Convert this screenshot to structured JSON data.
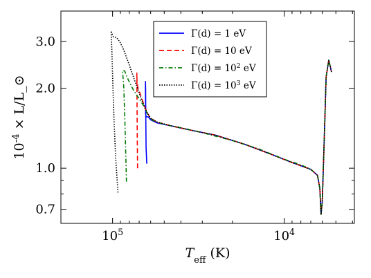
{
  "chart_data": {
    "type": "line",
    "xlabel": "T_eff (K)",
    "ylabel": "10^-4 × L/L_⊙",
    "x_axis": {
      "scale": "log",
      "reversed": true,
      "range": [
        200000,
        3900
      ]
    },
    "y_axis": {
      "scale": "log",
      "range": [
        0.62,
        3.9
      ]
    },
    "x_ticks": [
      {
        "value": 100000,
        "label": "10^5"
      },
      {
        "value": 10000,
        "label": "10^4"
      }
    ],
    "y_ticks": [
      {
        "value": 3.0,
        "label": "3.0"
      },
      {
        "value": 2.0,
        "label": "2.0"
      },
      {
        "value": 1.0,
        "label": "1.0"
      },
      {
        "value": 0.7,
        "label": "0.7"
      }
    ],
    "grid": false,
    "legend_position": "top-center",
    "series": [
      {
        "name": "Γ(d) = 1 eV",
        "color": "#0000ff",
        "style": "solid",
        "points": [
          [
            63200,
            1.04
          ],
          [
            63800,
            1.2
          ],
          [
            64000,
            1.5
          ],
          [
            64200,
            2.0
          ],
          [
            64300,
            2.12
          ],
          [
            64350,
            2.0
          ],
          [
            64200,
            1.6
          ],
          [
            63800,
            1.56
          ],
          [
            62000,
            1.56
          ],
          [
            60000,
            1.52
          ],
          [
            55000,
            1.48
          ],
          [
            45000,
            1.44
          ],
          [
            35000,
            1.39
          ],
          [
            25000,
            1.33
          ],
          [
            17000,
            1.23
          ],
          [
            12000,
            1.13
          ],
          [
            9000,
            1.05
          ],
          [
            7000,
            0.99
          ],
          [
            6400,
            0.94
          ],
          [
            6200,
            0.84
          ],
          [
            6100,
            0.67
          ],
          [
            6000,
            0.75
          ],
          [
            5800,
            1.5
          ],
          [
            5700,
            2.2
          ],
          [
            5500,
            2.55
          ],
          [
            5300,
            2.3
          ]
        ]
      },
      {
        "name": "Γ(d) = 10 eV",
        "color": "#ff0000",
        "style": "dashed",
        "points": [
          [
            71500,
            1.0
          ],
          [
            71800,
            1.3
          ],
          [
            72000,
            1.7
          ],
          [
            72200,
            2.28
          ],
          [
            72000,
            2.1
          ],
          [
            71000,
            2.0
          ],
          [
            69000,
            1.9
          ],
          [
            66000,
            1.75
          ],
          [
            63000,
            1.62
          ],
          [
            60000,
            1.54
          ],
          [
            55000,
            1.49
          ],
          [
            45000,
            1.44
          ],
          [
            35000,
            1.39
          ],
          [
            25000,
            1.33
          ],
          [
            17000,
            1.23
          ],
          [
            12000,
            1.13
          ],
          [
            9000,
            1.05
          ],
          [
            7000,
            0.99
          ],
          [
            6400,
            0.94
          ],
          [
            6200,
            0.84
          ],
          [
            6100,
            0.67
          ],
          [
            6000,
            0.75
          ],
          [
            5800,
            1.5
          ],
          [
            5700,
            2.2
          ],
          [
            5500,
            2.55
          ],
          [
            5300,
            2.3
          ]
        ]
      },
      {
        "name": "Γ(d) = 10^2 eV",
        "color": "#007a00",
        "style": "dashdot",
        "points": [
          [
            83000,
            0.89
          ],
          [
            84000,
            1.2
          ],
          [
            85000,
            1.6
          ],
          [
            86000,
            2.0
          ],
          [
            87500,
            2.33
          ],
          [
            85000,
            2.32
          ],
          [
            81000,
            2.15
          ],
          [
            76000,
            1.98
          ],
          [
            71000,
            1.85
          ],
          [
            66000,
            1.72
          ],
          [
            62000,
            1.58
          ],
          [
            58000,
            1.51
          ],
          [
            50000,
            1.46
          ],
          [
            40000,
            1.42
          ],
          [
            30000,
            1.36
          ],
          [
            20000,
            1.27
          ],
          [
            14000,
            1.18
          ],
          [
            10000,
            1.08
          ],
          [
            8000,
            1.03
          ],
          [
            7000,
            0.99
          ],
          [
            6400,
            0.94
          ],
          [
            6200,
            0.84
          ],
          [
            6100,
            0.67
          ],
          [
            6000,
            0.75
          ],
          [
            5800,
            1.5
          ],
          [
            5700,
            2.2
          ],
          [
            5500,
            2.55
          ],
          [
            5300,
            2.3
          ]
        ]
      },
      {
        "name": "Γ(d) = 10^3 eV",
        "color": "#000000",
        "style": "dotted",
        "points": [
          [
            93000,
            0.81
          ],
          [
            96000,
            1.1
          ],
          [
            98000,
            1.5
          ],
          [
            99500,
            2.0
          ],
          [
            101000,
            2.8
          ],
          [
            102000,
            3.28
          ],
          [
            99000,
            3.12
          ],
          [
            95000,
            3.1
          ],
          [
            91000,
            3.0
          ],
          [
            86000,
            2.78
          ],
          [
            80000,
            2.45
          ],
          [
            74000,
            2.12
          ],
          [
            68000,
            1.82
          ],
          [
            63000,
            1.62
          ],
          [
            60000,
            1.54
          ],
          [
            55000,
            1.49
          ],
          [
            45000,
            1.44
          ],
          [
            35000,
            1.39
          ],
          [
            25000,
            1.33
          ],
          [
            17000,
            1.23
          ],
          [
            12000,
            1.13
          ],
          [
            9000,
            1.05
          ],
          [
            7000,
            0.99
          ],
          [
            6400,
            0.94
          ],
          [
            6200,
            0.84
          ],
          [
            6100,
            0.67
          ],
          [
            6000,
            0.75
          ],
          [
            5800,
            1.5
          ],
          [
            5700,
            2.2
          ],
          [
            5500,
            2.55
          ],
          [
            5300,
            2.3
          ]
        ]
      }
    ]
  }
}
